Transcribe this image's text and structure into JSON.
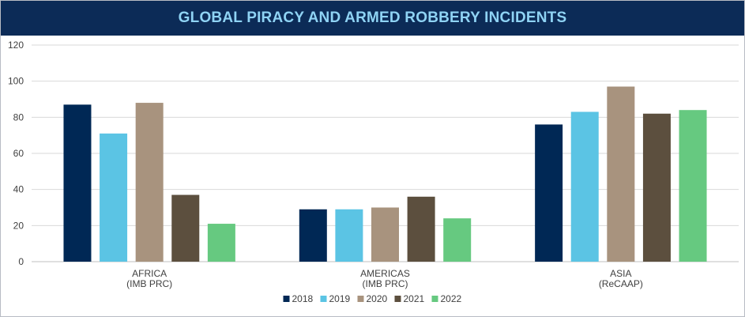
{
  "chart_data": {
    "type": "bar",
    "title": "GLOBAL PIRACY AND ARMED ROBBERY INCIDENTS",
    "categories": [
      [
        "AFRICA",
        "(IMB PRC)"
      ],
      [
        "AMERICAS",
        "(IMB PRC)"
      ],
      [
        "ASIA",
        "(ReCAAP)"
      ]
    ],
    "series": [
      {
        "name": "2018",
        "color": "#002855",
        "values": [
          87,
          29,
          76
        ]
      },
      {
        "name": "2019",
        "color": "#5bc4e4",
        "values": [
          71,
          29,
          83
        ]
      },
      {
        "name": "2020",
        "color": "#a8937e",
        "values": [
          88,
          30,
          97
        ]
      },
      {
        "name": "2021",
        "color": "#5c4f3e",
        "values": [
          37,
          36,
          82
        ]
      },
      {
        "name": "2022",
        "color": "#66c980",
        "values": [
          21,
          24,
          84
        ]
      }
    ],
    "yticks": [
      0,
      20,
      40,
      60,
      80,
      100,
      120
    ],
    "ylim": [
      0,
      120
    ],
    "grid": true,
    "legend": "bottom",
    "xlabel": "",
    "ylabel": ""
  }
}
